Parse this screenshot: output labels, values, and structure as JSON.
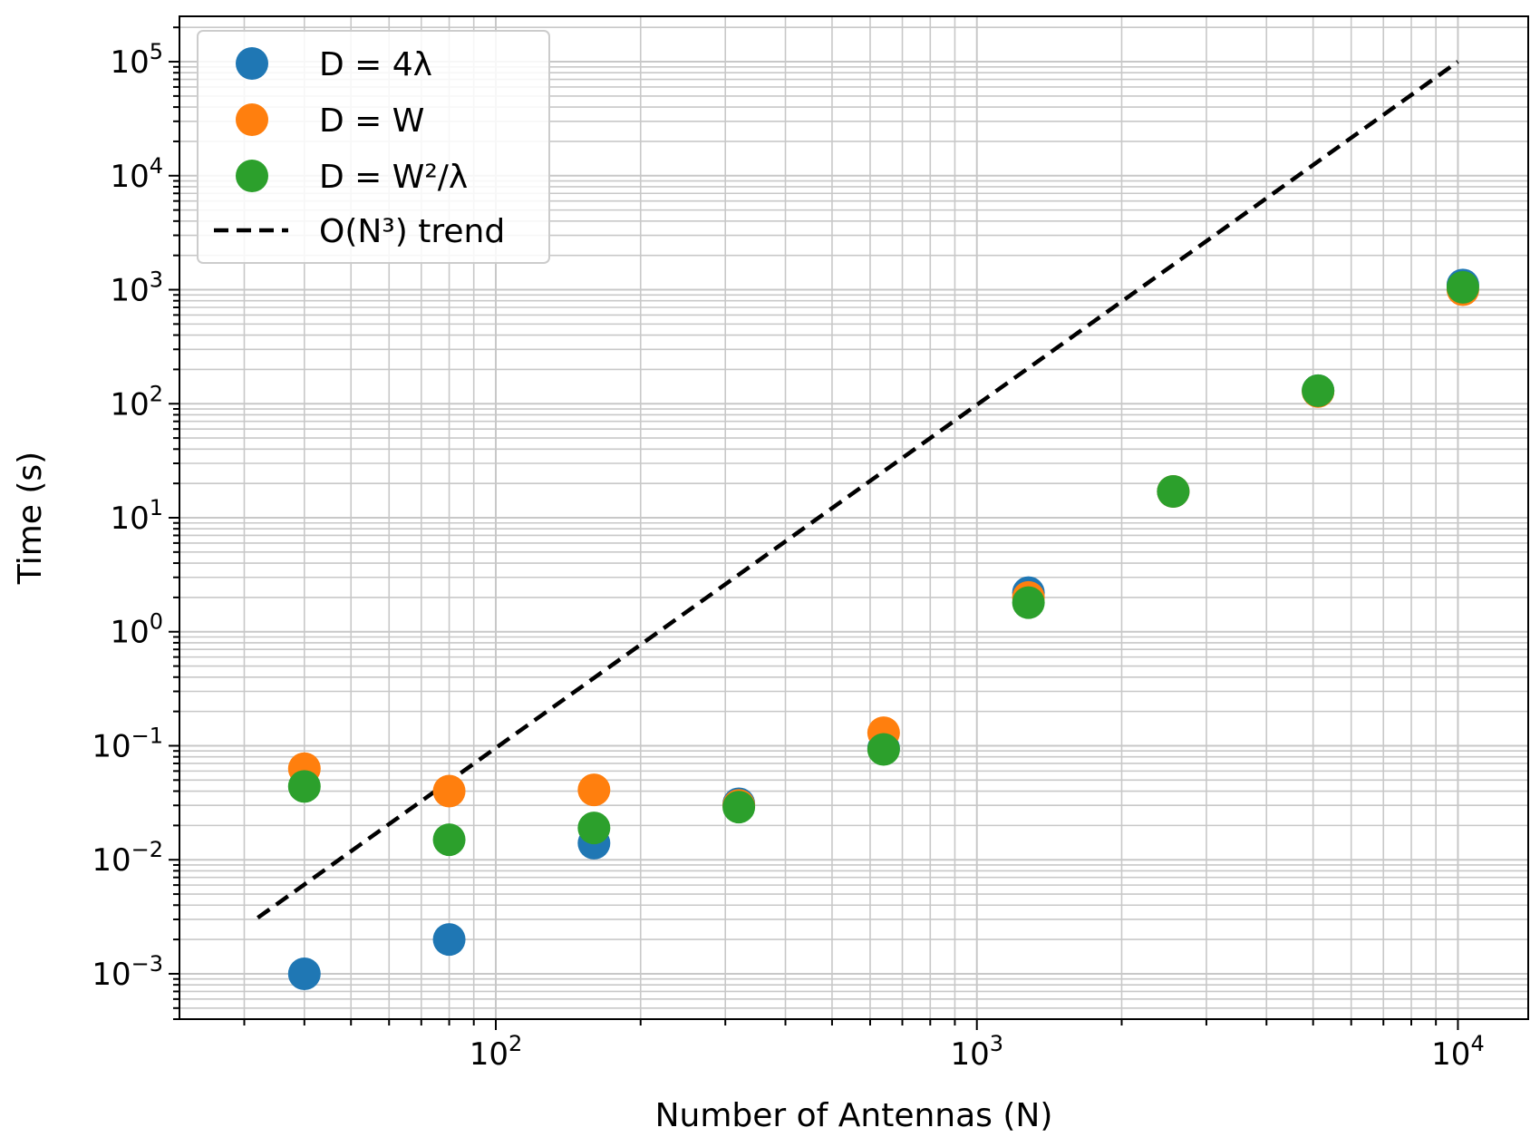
{
  "chart_data": {
    "type": "scatter",
    "title": "",
    "xlabel": "Number of Antennas (N)",
    "ylabel": "Time (s)",
    "xscale": "log",
    "yscale": "log",
    "xlim": [
      22,
      14000
    ],
    "ylim": [
      0.0004,
      250000
    ],
    "grid": "major and minor",
    "legend_placement": "top-left",
    "x_ticks": [
      {
        "value": 100,
        "base": "10",
        "exp": "2"
      },
      {
        "value": 1000,
        "base": "10",
        "exp": "3"
      },
      {
        "value": 10000,
        "base": "10",
        "exp": "4"
      }
    ],
    "y_ticks": [
      {
        "value": 0.001,
        "base": "10",
        "exp": "−3"
      },
      {
        "value": 0.01,
        "base": "10",
        "exp": "−2"
      },
      {
        "value": 0.1,
        "base": "10",
        "exp": "−1"
      },
      {
        "value": 1,
        "base": "10",
        "exp": "0"
      },
      {
        "value": 10,
        "base": "10",
        "exp": "1"
      },
      {
        "value": 100,
        "base": "10",
        "exp": "2"
      },
      {
        "value": 1000,
        "base": "10",
        "exp": "3"
      },
      {
        "value": 10000,
        "base": "10",
        "exp": "4"
      },
      {
        "value": 100000,
        "base": "10",
        "exp": "5"
      }
    ],
    "series": [
      {
        "name": "D = 4λ",
        "color": "#1f77b4",
        "marker": "circle",
        "x": [
          40,
          80,
          160,
          320,
          640,
          1280,
          2560,
          5120,
          10240
        ],
        "y": [
          0.001,
          0.002,
          0.014,
          0.031,
          0.095,
          2.2,
          17,
          130,
          1100
        ]
      },
      {
        "name": "D = W",
        "color": "#ff7f0e",
        "marker": "circle",
        "x": [
          40,
          80,
          160,
          320,
          640,
          1280,
          2560,
          5120,
          10240
        ],
        "y": [
          0.063,
          0.04,
          0.041,
          0.03,
          0.13,
          2.0,
          17,
          128,
          1000
        ]
      },
      {
        "name": "D = W²/λ",
        "color": "#2ca02c",
        "marker": "circle",
        "x": [
          40,
          80,
          160,
          320,
          640,
          1280,
          2560,
          5120,
          10240
        ],
        "y": [
          0.044,
          0.015,
          0.019,
          0.029,
          0.093,
          1.8,
          17,
          130,
          1050
        ]
      }
    ],
    "trend": {
      "name": "O(N³) trend",
      "color": "#000000",
      "style": "dashed",
      "x": [
        32,
        10000
      ],
      "y": [
        0.0031,
        100000
      ]
    }
  }
}
